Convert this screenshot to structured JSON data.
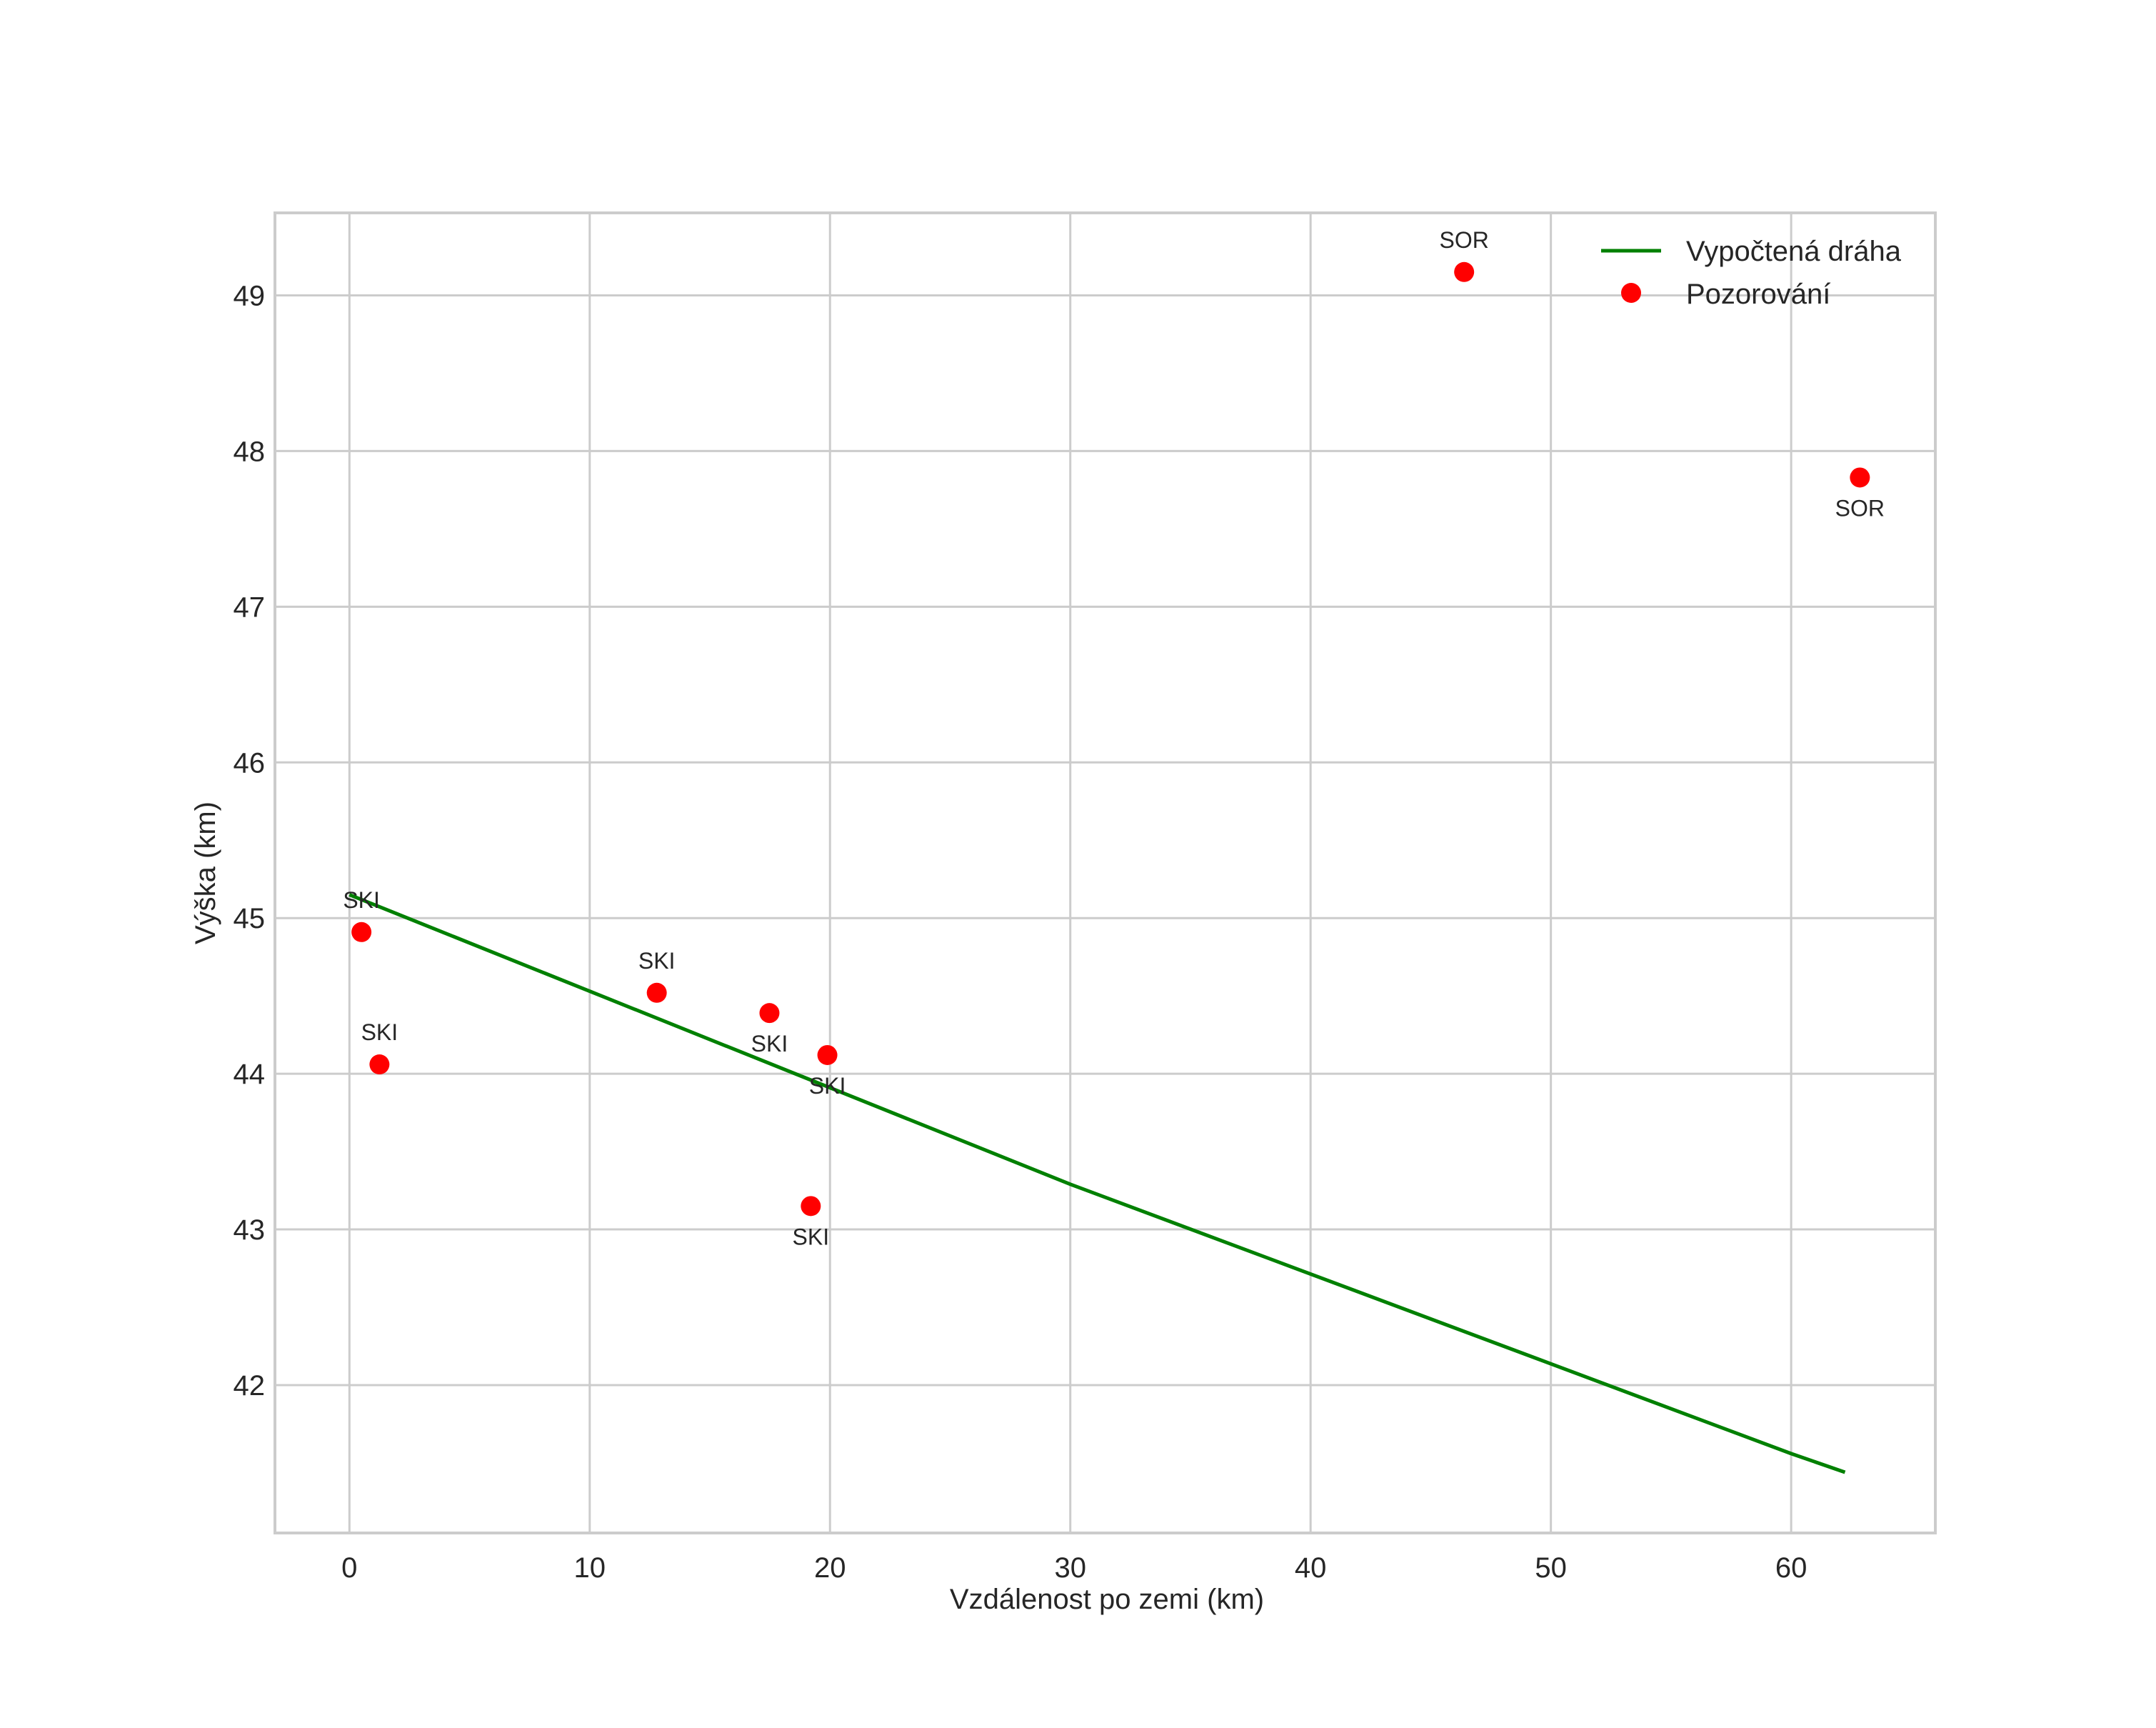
{
  "chart_data": {
    "type": "scatter",
    "title": "",
    "xlabel": "Vzdálenost po zemi (km)",
    "ylabel": "Výška (km)",
    "xlim": [
      -3.1,
      66.0
    ],
    "ylim": [
      41.05,
      49.53
    ],
    "xticks": [
      0,
      10,
      20,
      30,
      40,
      50,
      60
    ],
    "yticks": [
      42,
      43,
      44,
      45,
      46,
      47,
      48,
      49
    ],
    "grid": true,
    "legend_position": "upper right",
    "series": [
      {
        "name": "Vypočtená dráha",
        "type": "line",
        "color": "#008000",
        "x": [
          0,
          30,
          60,
          62.24
        ],
        "y": [
          45.15,
          43.29,
          41.56,
          41.44
        ]
      },
      {
        "name": "Pozorování",
        "type": "scatter",
        "color": "#ff0000",
        "points": [
          {
            "x": 0.5,
            "y": 44.91,
            "label": "SKI",
            "label_pos": "above"
          },
          {
            "x": 1.25,
            "y": 44.06,
            "label": "SKI",
            "label_pos": "above"
          },
          {
            "x": 12.79,
            "y": 44.52,
            "label": "SKI",
            "label_pos": "above"
          },
          {
            "x": 17.48,
            "y": 44.39,
            "label": "SKI",
            "label_pos": "below"
          },
          {
            "x": 19.89,
            "y": 44.12,
            "label": "SKI",
            "label_pos": "below"
          },
          {
            "x": 19.2,
            "y": 43.15,
            "label": "SKI",
            "label_pos": "below"
          },
          {
            "x": 46.39,
            "y": 49.15,
            "label": "SOR",
            "label_pos": "above"
          },
          {
            "x": 62.86,
            "y": 47.83,
            "label": "SOR",
            "label_pos": "below"
          }
        ]
      }
    ]
  },
  "legend": {
    "items": [
      {
        "label": "Vypočtená dráha",
        "symbol": "line",
        "color": "#008000"
      },
      {
        "label": "Pozorování",
        "symbol": "dot",
        "color": "#ff0000"
      }
    ]
  },
  "axes": {
    "xlabel": "Vzdálenost po zemi (km)",
    "ylabel": "Výška (km)",
    "xtick_labels": [
      "0",
      "10",
      "20",
      "30",
      "40",
      "50",
      "60"
    ],
    "ytick_labels": [
      "42",
      "43",
      "44",
      "45",
      "46",
      "47",
      "48",
      "49"
    ]
  },
  "colors": {
    "grid": "#cccccc",
    "text": "#262626",
    "line": "#008000",
    "marker": "#ff0000"
  }
}
